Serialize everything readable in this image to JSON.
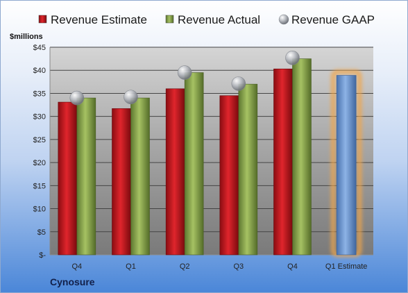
{
  "chart_data": {
    "type": "bar",
    "ylabel": "$millions",
    "company": "Cynosure",
    "categories": [
      "Q4",
      "Q1",
      "Q2",
      "Q3",
      "Q4",
      "Q1 Estimate"
    ],
    "ylim": [
      0,
      45
    ],
    "yticks": [
      0,
      5,
      10,
      15,
      20,
      25,
      30,
      35,
      40,
      45
    ],
    "ytick_labels": [
      "$-",
      "$5",
      "$10",
      "$15",
      "$20",
      "$25",
      "$30",
      "$35",
      "$40",
      "$45"
    ],
    "grid": true,
    "legend_position": "top",
    "series": [
      {
        "name": "Revenue Estimate",
        "kind": "bar",
        "color": "#c8161d",
        "values": [
          33.1,
          31.7,
          36.0,
          34.5,
          40.3,
          null
        ]
      },
      {
        "name": "Revenue Actual",
        "kind": "bar",
        "color": "#8aa84a",
        "values": [
          34.0,
          34.0,
          39.5,
          37.0,
          42.5,
          null
        ]
      },
      {
        "name": "Revenue GAAP",
        "kind": "marker",
        "color": "#b5b9c0",
        "values": [
          34.0,
          34.2,
          39.5,
          37.1,
          42.7,
          null
        ]
      }
    ],
    "estimate": {
      "category_index": 5,
      "value": 38.9,
      "color": "#6f9bd8",
      "highlight": "#f2a64a"
    }
  }
}
